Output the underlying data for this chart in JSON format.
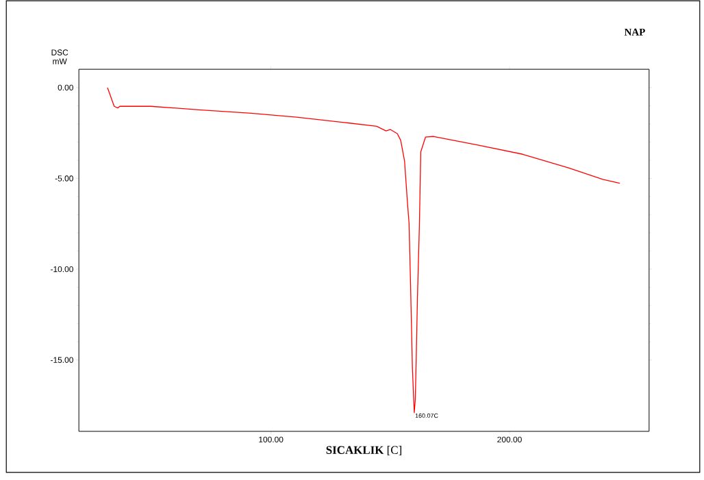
{
  "chart_data": {
    "type": "line",
    "title": "NAP",
    "ylabel": "DSC mW",
    "xlabel": "**SICAKLIK** [C]",
    "xlim": [
      19.5,
      258.5
    ],
    "ylim": [
      -18.93,
      1.01
    ],
    "xticks": [
      {
        "value": 100,
        "label": "100.00"
      },
      {
        "value": 200,
        "label": "200.00"
      }
    ],
    "yticks": [
      {
        "value": 0,
        "label": "0.00"
      },
      {
        "value": -5,
        "label": "-5.00"
      },
      {
        "value": -10,
        "label": "-10.00"
      },
      {
        "value": -15,
        "label": "-15.00"
      }
    ],
    "marker": "none",
    "line_style": "solid",
    "annotations": [
      {
        "text": "160.07C",
        "x": 160.07,
        "y": -17.9
      }
    ],
    "series": [
      {
        "color": "#ff0000",
        "x": [
          31.5,
          34.3,
          35.8,
          36.7,
          49.6,
          69.7,
          91.7,
          110.8,
          130,
          144.3,
          148.2,
          150.1,
          153,
          154.4,
          156.0,
          157.2,
          157.9,
          158.5,
          159.3,
          160.07,
          160.5,
          160.9,
          161.4,
          162.2,
          162.8,
          164.8,
          168.2,
          186.4,
          205.5,
          224.7,
          239,
          246.2
        ],
        "values": [
          0,
          -1.03,
          -1.12,
          -1.03,
          -1.03,
          -1.22,
          -1.41,
          -1.63,
          -1.91,
          -2.13,
          -2.38,
          -2.31,
          -2.54,
          -2.91,
          -4.04,
          -6.3,
          -7.5,
          -10.75,
          -15.46,
          -17.9,
          -17.2,
          -14.9,
          -11.6,
          -7.7,
          -3.54,
          -2.72,
          -2.69,
          -3.16,
          -3.67,
          -4.42,
          -5.05,
          -5.27
        ]
      }
    ]
  }
}
